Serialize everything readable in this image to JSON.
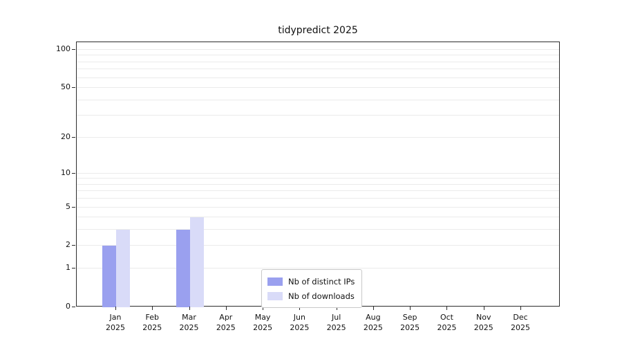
{
  "figure": {
    "background": "#ffffff"
  },
  "chart_data": {
    "type": "bar",
    "title": "tidypredict 2025",
    "categories": [
      "Jan",
      "Feb",
      "Mar",
      "Apr",
      "May",
      "Jun",
      "Jul",
      "Aug",
      "Sep",
      "Oct",
      "Nov",
      "Dec"
    ],
    "year_label": "2025",
    "series": [
      {
        "name": "Nb of distinct IPs",
        "color": "#9aa0ef",
        "values": [
          2,
          0,
          3,
          0,
          0,
          0,
          0,
          0,
          0,
          0,
          0,
          0
        ]
      },
      {
        "name": "Nb of downloads",
        "color": "#d9dbf8",
        "values": [
          3,
          0,
          4,
          0,
          0,
          0,
          0,
          0,
          0,
          0,
          0,
          0
        ]
      }
    ],
    "yscale": "log1p",
    "y_max": 100,
    "yticks": [
      0,
      1,
      2,
      5,
      10,
      20,
      50,
      100
    ],
    "gridlines": [
      1,
      2,
      3,
      4,
      5,
      6,
      7,
      8,
      9,
      10,
      20,
      30,
      40,
      50,
      60,
      70,
      80,
      90,
      100
    ],
    "grid": true,
    "legend_position": "bottom-center",
    "xlabel": "",
    "ylabel": ""
  }
}
